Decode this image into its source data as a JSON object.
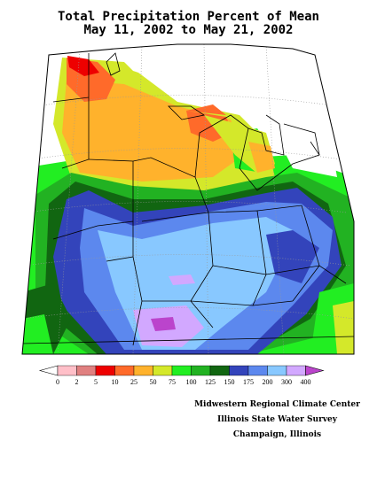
{
  "title": {
    "line1": "Total Precipitation Percent of Mean",
    "line2": "May 11, 2002 to May 21, 2002"
  },
  "legend": {
    "tick_labels": [
      "0",
      "2",
      "5",
      "10",
      "25",
      "50",
      "75",
      "100",
      "125",
      "150",
      "175",
      "200",
      "300",
      "400"
    ],
    "colors": [
      "#ffffff",
      "#ffbfc8",
      "#e08080",
      "#ee0000",
      "#ff6a2a",
      "#ffb22c",
      "#d4e82a",
      "#22ee22",
      "#22b222",
      "#116611",
      "#3344bb",
      "#5c88ee",
      "#88c8ff",
      "#d2a8ff",
      "#bb44cc"
    ]
  },
  "credits": {
    "line1": "Midwestern Regional Climate Center",
    "line2": "Illinois State Water Survey",
    "line3": "Champaign, Illinois"
  }
}
